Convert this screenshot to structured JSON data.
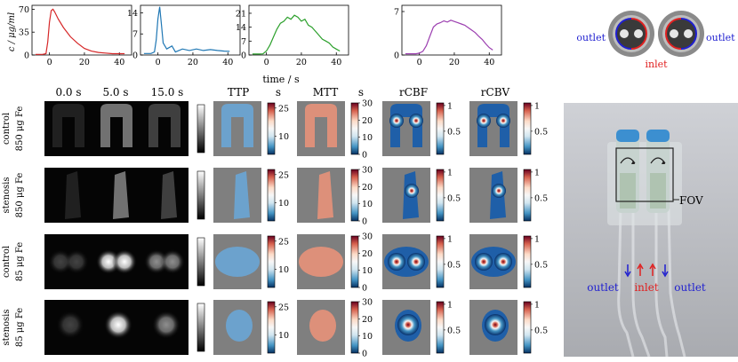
{
  "curves": {
    "ylabel": "c / μg/ml",
    "xlabel": "time / s",
    "x_ticks": [
      0,
      20,
      40
    ],
    "panels": [
      {
        "name": "red-curve",
        "color": "#d62728",
        "y_ticks": [
          0,
          35,
          70
        ],
        "ymax": 76,
        "x": [
          -8,
          -4,
          -2,
          -1,
          0,
          1,
          2,
          3,
          5,
          8,
          12,
          16,
          20,
          24,
          28,
          32,
          36,
          40,
          43
        ],
        "y": [
          1,
          1,
          2,
          20,
          50,
          68,
          70,
          66,
          55,
          42,
          28,
          18,
          10,
          6,
          4,
          3,
          2,
          2,
          2
        ]
      },
      {
        "name": "blue-curve",
        "color": "#1f77b4",
        "y_ticks": [
          0,
          7,
          14
        ],
        "ymax": 16.5,
        "x": [
          -8,
          -4,
          -2,
          -1,
          0,
          1,
          2,
          3,
          5,
          8,
          10,
          14,
          18,
          22,
          26,
          30,
          34,
          38,
          41
        ],
        "y": [
          0.5,
          0.5,
          1,
          5,
          12,
          16,
          10,
          4,
          2,
          3,
          1,
          2,
          1.5,
          2,
          1.5,
          1.8,
          1.5,
          1.3,
          1.2
        ]
      },
      {
        "name": "green-curve",
        "color": "#2ca02c",
        "y_ticks": [
          0,
          7,
          14,
          21
        ],
        "ymax": 25,
        "x": [
          -8,
          -4,
          -2,
          0,
          2,
          4,
          6,
          8,
          10,
          12,
          14,
          16,
          18,
          20,
          22,
          24,
          26,
          28,
          30,
          32,
          34,
          36,
          38,
          40,
          42
        ],
        "y": [
          0.5,
          0.5,
          0.6,
          2,
          5,
          9,
          13,
          16,
          17,
          19,
          18,
          20,
          19,
          17,
          18,
          15,
          14,
          12,
          10,
          8,
          7,
          6,
          4,
          3,
          2
        ]
      },
      {
        "name": "purple-curve",
        "color": "#9c3fb0",
        "y_ticks": [
          0,
          7
        ],
        "ymax": 8,
        "x": [
          -8,
          -4,
          -2,
          0,
          2,
          4,
          6,
          8,
          10,
          12,
          14,
          16,
          18,
          20,
          22,
          24,
          26,
          28,
          30,
          32,
          34,
          36,
          38,
          40,
          42
        ],
        "y": [
          0.2,
          0.2,
          0.2,
          0.3,
          0.6,
          1.5,
          3,
          4.5,
          5,
          5.2,
          5.5,
          5.3,
          5.6,
          5.4,
          5.2,
          5,
          4.8,
          4.4,
          4,
          3.6,
          3,
          2.5,
          1.8,
          1.2,
          0.8
        ]
      }
    ]
  },
  "columns": {
    "time_frames": [
      "0.0 s",
      "5.0 s",
      "15.0 s"
    ],
    "maps": [
      {
        "label": "TTP",
        "unit": "s",
        "ticks": [
          "25",
          "10"
        ]
      },
      {
        "label": "MTT",
        "unit": "s",
        "ticks": [
          "30",
          "20",
          "10",
          "0"
        ]
      },
      {
        "label": "rCBF",
        "unit": "",
        "ticks": [
          "1",
          "0.5"
        ]
      },
      {
        "label": "rCBV",
        "unit": "",
        "ticks": [
          "1",
          "0.5"
        ]
      }
    ]
  },
  "rows": [
    {
      "condition": "control",
      "dose": "850 μg Fe",
      "shape": "two-tubes"
    },
    {
      "condition": "stenosis",
      "dose": "850 μg Fe",
      "shape": "one-tube"
    },
    {
      "condition": "control",
      "dose": "85 μg Fe",
      "shape": "two-blobs"
    },
    {
      "condition": "stenosis",
      "dose": "85 μg Fe",
      "shape": "one-blob"
    }
  ],
  "phantom_top": {
    "outlet_left": "outlet",
    "outlet_right": "outlet",
    "inlet": "inlet"
  },
  "photo": {
    "fov": "FOV",
    "outlet_left": "outlet",
    "inlet": "inlet",
    "outlet_right": "outlet"
  },
  "colors": {
    "outlet": "#1f1fd0",
    "inlet": "#e02020",
    "background_gray": "#7f7f7f"
  }
}
